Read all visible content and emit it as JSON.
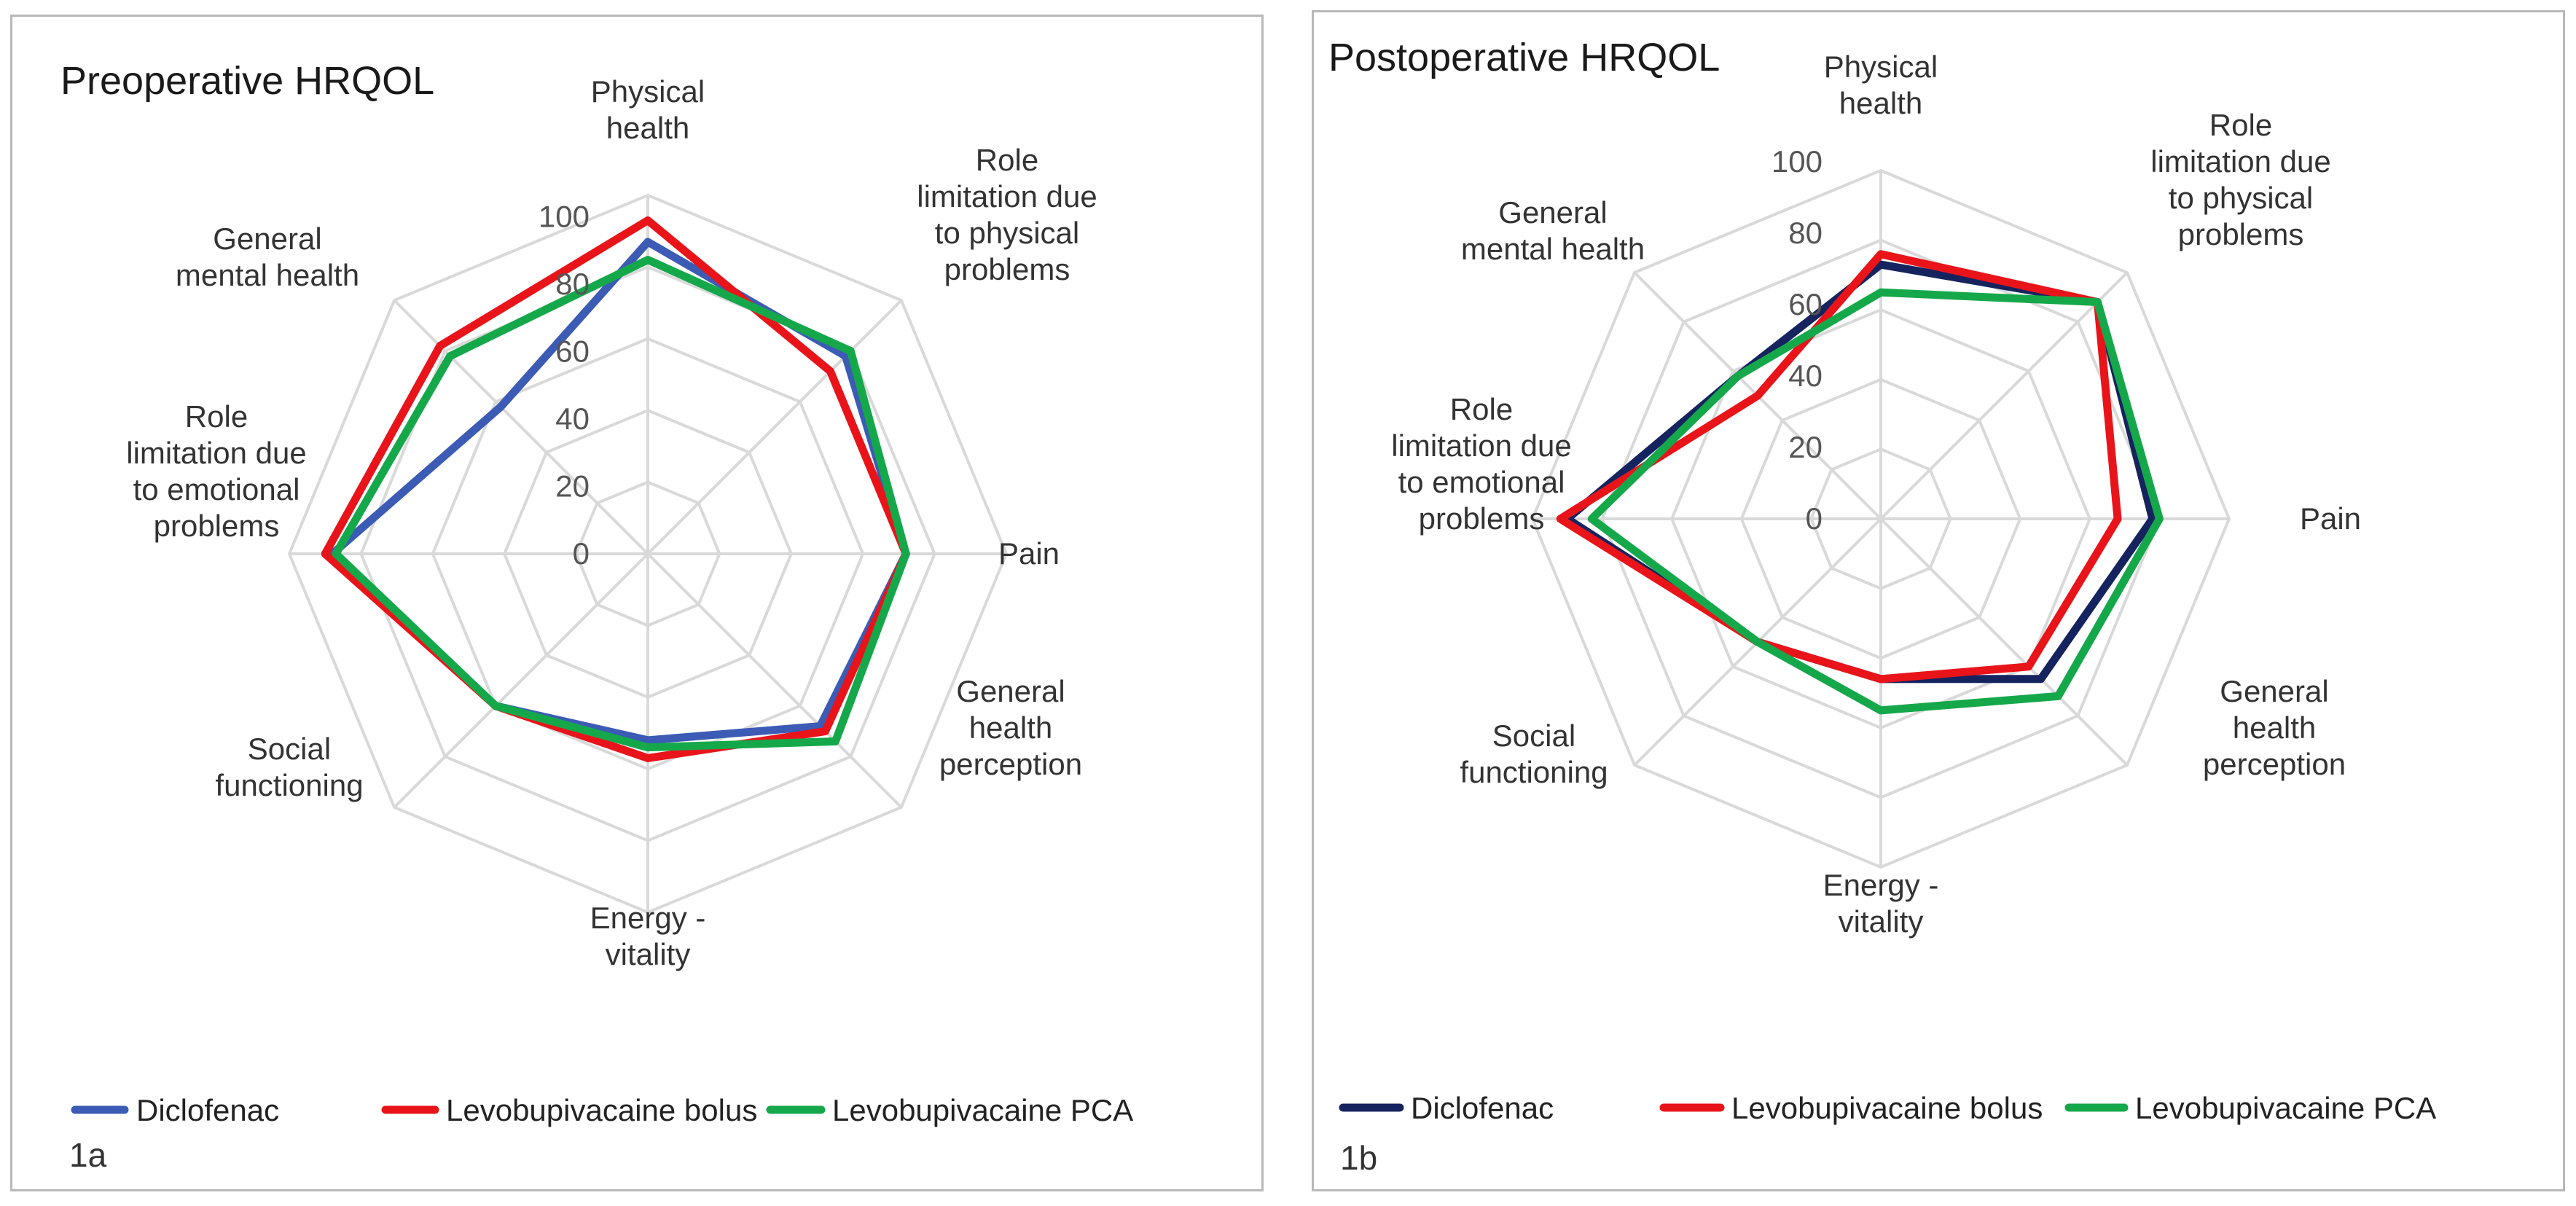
{
  "chart_data": [
    {
      "type": "radar",
      "panel_label": "1a",
      "title": "Preoperative HRQOL",
      "categories": [
        [
          "Physical",
          "health"
        ],
        [
          "Role",
          "limitation due",
          "to physical",
          "problems"
        ],
        [
          "Pain"
        ],
        [
          "General",
          "health",
          "perception"
        ],
        [
          "Energy -",
          "vitality"
        ],
        [
          "Social",
          "functioning"
        ],
        [
          "Role",
          "limitation due",
          "to emotional",
          "problems"
        ],
        [
          "General",
          "mental health"
        ]
      ],
      "rlim": [
        0,
        100
      ],
      "ticks": [
        "0",
        "20",
        "40",
        "60",
        "80",
        "100"
      ],
      "series": [
        {
          "name": "Diclofenac",
          "color": "#3b5bb5",
          "values": [
            87,
            78,
            72,
            68,
            52,
            60,
            88,
            58
          ]
        },
        {
          "name": "Levobupivacaine bolus",
          "color": "#e8141a",
          "values": [
            93,
            72,
            72,
            70,
            57,
            60,
            90,
            82
          ]
        },
        {
          "name": "Levobupivacaine PCA",
          "color": "#15a84a",
          "values": [
            82,
            80,
            72,
            74,
            54,
            60,
            87,
            78
          ]
        }
      ],
      "legend_position": "bottom"
    },
    {
      "type": "radar",
      "panel_label": "1b",
      "title": "Postoperative HRQOL",
      "categories": [
        [
          "Physical",
          "health"
        ],
        [
          "Role",
          "limitation due",
          "to physical",
          "problems"
        ],
        [
          "Pain"
        ],
        [
          "General",
          "health",
          "perception"
        ],
        [
          "Energy -",
          "vitality"
        ],
        [
          "Social",
          "functioning"
        ],
        [
          "Role",
          "limitation due",
          "to emotional",
          "problems"
        ],
        [
          "General",
          "mental health"
        ]
      ],
      "rlim": [
        0,
        100
      ],
      "ticks": [
        "0",
        "20",
        "40",
        "60",
        "80",
        "100"
      ],
      "series": [
        {
          "name": "Diclofenac",
          "color": "#15235e",
          "values": [
            73,
            88,
            78,
            65,
            46,
            50,
            90,
            58
          ]
        },
        {
          "name": "Levobupivacaine bolus",
          "color": "#e8141a",
          "values": [
            76,
            88,
            68,
            60,
            46,
            50,
            92,
            50
          ]
        },
        {
          "name": "Levobupivacaine PCA",
          "color": "#15a84a",
          "values": [
            65,
            88,
            80,
            72,
            55,
            50,
            83,
            58
          ]
        }
      ],
      "legend_position": "bottom"
    }
  ]
}
